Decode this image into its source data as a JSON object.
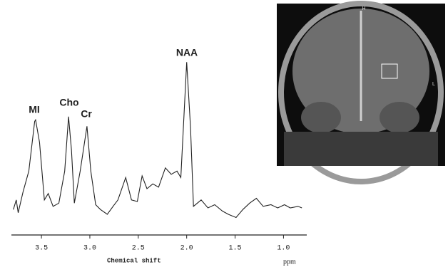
{
  "chart_data": {
    "type": "line",
    "x_label": "Chemical shift",
    "x_unit": "ppm",
    "xlim": [
      3.81,
      0.76
    ],
    "xticks": [
      3.5,
      {
        "value": 3,
        "label": "3.0"
      },
      2.5,
      {
        "value": 2,
        "label": "2.0"
      },
      1.5,
      {
        "value": 1,
        "label": "1.0"
      }
    ],
    "ylim": [
      0,
      100
    ],
    "annotations": [
      "MI",
      "Cho",
      "Cr",
      "NAA"
    ],
    "series": [
      {
        "color": "#222222",
        "x": [
          3.79,
          3.76,
          3.74,
          3.69,
          3.63,
          3.57,
          3.56,
          3.52,
          3.47,
          3.43,
          3.38,
          3.32,
          3.26,
          3.22,
          3.19,
          3.16,
          3.1,
          3.03,
          2.99,
          2.94,
          2.89,
          2.82,
          2.76,
          2.71,
          2.63,
          2.57,
          2.51,
          2.46,
          2.41,
          2.35,
          2.29,
          2.22,
          2.16,
          2.1,
          2.06,
          2.0,
          1.96,
          1.93,
          1.85,
          1.78,
          1.71,
          1.63,
          1.57,
          1.49,
          1.42,
          1.35,
          1.28,
          1.21,
          1.13,
          1.06,
          0.99,
          0.93,
          0.85,
          0.81
        ],
        "values": [
          7,
          13,
          5,
          18,
          31,
          62,
          63,
          49,
          13,
          17,
          9,
          11,
          31,
          65,
          44,
          11,
          31,
          59,
          31,
          10,
          7,
          4,
          9,
          13,
          27,
          13,
          12,
          28,
          20,
          23,
          21,
          33,
          29,
          31,
          27,
          99,
          58,
          9,
          13,
          8,
          10,
          6,
          4,
          2,
          7,
          11,
          14,
          9,
          10,
          8,
          10,
          8,
          9,
          8
        ]
      }
    ],
    "image_labels": [
      "H",
      "L"
    ]
  }
}
